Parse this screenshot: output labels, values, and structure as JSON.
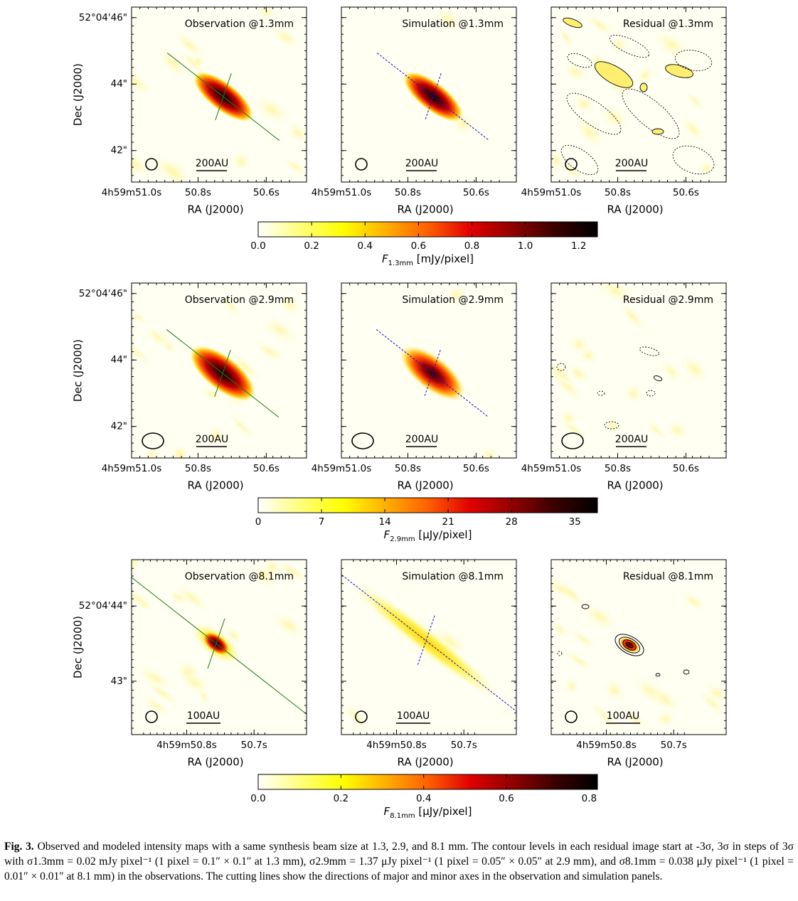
{
  "rows": [
    {
      "panel_titles": [
        "Observation @1.3mm",
        "Simulation @1.3mm",
        "Residual @1.3mm"
      ],
      "dec_ticks": [
        "52°04'46\"",
        "44\"",
        "42\""
      ],
      "ra_ticks": [
        "4h59m51.0s",
        "50.8s",
        "50.6s"
      ],
      "scale_bar": "200AU",
      "ra_title": "RA (J2000)",
      "dec_title": "Dec (J2000)",
      "colorbar": {
        "ticks": [
          "0.0",
          "0.2",
          "0.4",
          "0.6",
          "0.8",
          "1.0",
          "1.2"
        ],
        "label_main": "F",
        "label_sub": "1.3mm",
        "label_unit": " [mJy/pixel]",
        "range": [
          0,
          1.27
        ]
      }
    },
    {
      "panel_titles": [
        "Observation @2.9mm",
        "Simulation @2.9mm",
        "Residual @2.9mm"
      ],
      "dec_ticks": [
        "52°04'46\"",
        "44\"",
        "42\""
      ],
      "ra_ticks": [
        "4h59m51.0s",
        "50.8s",
        "50.6s"
      ],
      "scale_bar": "200AU",
      "ra_title": "RA (J2000)",
      "dec_title": "Dec (J2000)",
      "colorbar": {
        "ticks": [
          "0",
          "7",
          "14",
          "21",
          "28",
          "35"
        ],
        "label_main": "F",
        "label_sub": "2.9mm",
        "label_unit": " [μJy/pixel]",
        "range": [
          0,
          37.5
        ]
      }
    },
    {
      "panel_titles": [
        "Observation @8.1mm",
        "Simulation @8.1mm",
        "Residual @8.1mm"
      ],
      "dec_ticks": [
        "52°04'44\"",
        "43\""
      ],
      "ra_ticks": [
        "4h59m50.8s",
        "50.7s"
      ],
      "scale_bar": "100AU",
      "ra_title": "RA (J2000)",
      "dec_title": "Dec (J2000)",
      "colorbar": {
        "ticks": [
          "0.0",
          "0.2",
          "0.4",
          "0.6",
          "0.8"
        ],
        "label_main": "F",
        "label_sub": "8.1mm",
        "label_unit": " [μJy/pixel]",
        "range": [
          0,
          0.82
        ]
      }
    }
  ],
  "colormap": [
    "#ffffff",
    "#ffff7a",
    "#ffff00",
    "#ffb000",
    "#ff6000",
    "#e00000",
    "#900000",
    "#3a0000",
    "#000000"
  ],
  "caption": {
    "label": "Fig. 3.",
    "text": " Observed and modeled intensity maps with a same synthesis beam size at 1.3, 2.9, and 8.1 mm. The contour levels in each residual image start at -3σ, 3σ in steps of 3σ with σ1.3mm = 0.02 mJy pixel⁻¹ (1 pixel = 0.1″ × 0.1″ at 1.3 mm), σ2.9mm = 1.37 μJy pixel⁻¹ (1 pixel = 0.05″ × 0.05″ at 2.9 mm), and σ8.1mm = 0.038 μJy pixel⁻¹ (1 pixel = 0.01″ × 0.01″ at 8.1 mm) in the observations. The cutting lines show the directions of major and minor axes in the observation and simulation panels."
  }
}
